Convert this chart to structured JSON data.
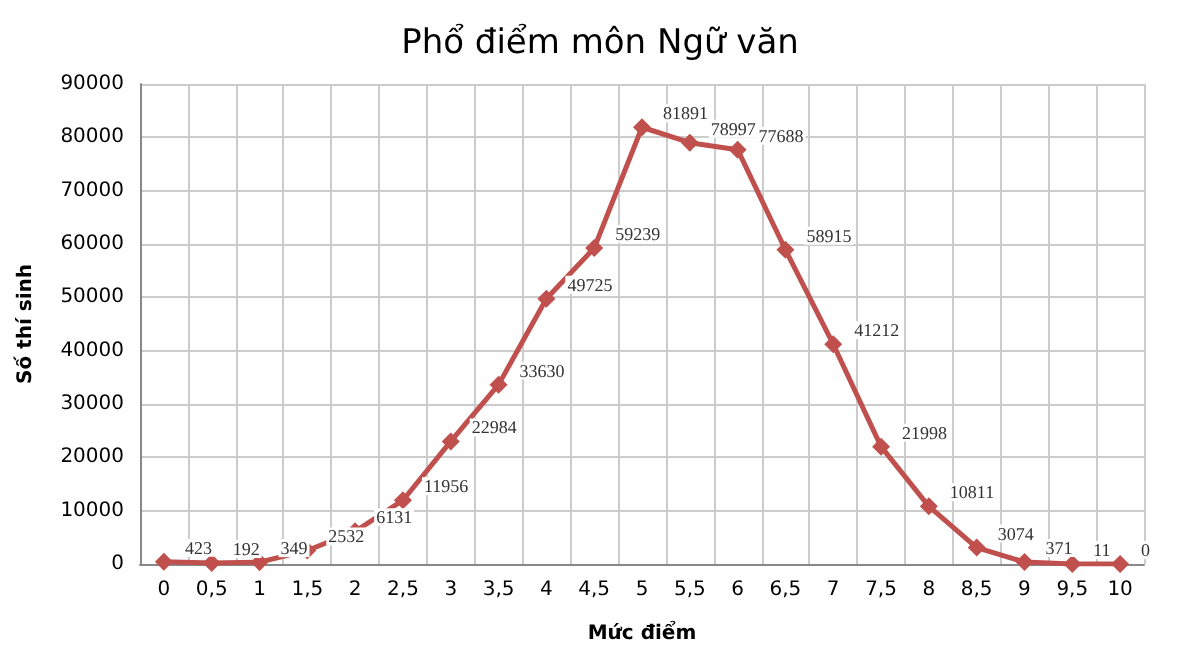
{
  "chart_data": {
    "type": "line",
    "title": "Phổ điểm môn Ngữ văn",
    "xlabel": "Mức điểm",
    "ylabel": "Số thí sinh",
    "categories": [
      "0",
      "0,5",
      "1",
      "1,5",
      "2",
      "2,5",
      "3",
      "3,5",
      "4",
      "4,5",
      "5",
      "5,5",
      "6",
      "6,5",
      "7",
      "7,5",
      "8",
      "8,5",
      "9",
      "9,5",
      "10"
    ],
    "series": [
      {
        "color": "#c0504d",
        "values": [
          423,
          192,
          349,
          2532,
          6131,
          11956,
          22984,
          33630,
          49725,
          59239,
          81891,
          78997,
          77688,
          58915,
          41212,
          21998,
          10811,
          3074,
          371,
          11,
          0
        ]
      }
    ],
    "ylim": [
      0,
      90000
    ],
    "yticks": [
      0,
      10000,
      20000,
      30000,
      40000,
      50000,
      60000,
      70000,
      80000,
      90000
    ],
    "grid": true,
    "marker": "diamond",
    "line_style": "solid",
    "data_labels": true
  }
}
